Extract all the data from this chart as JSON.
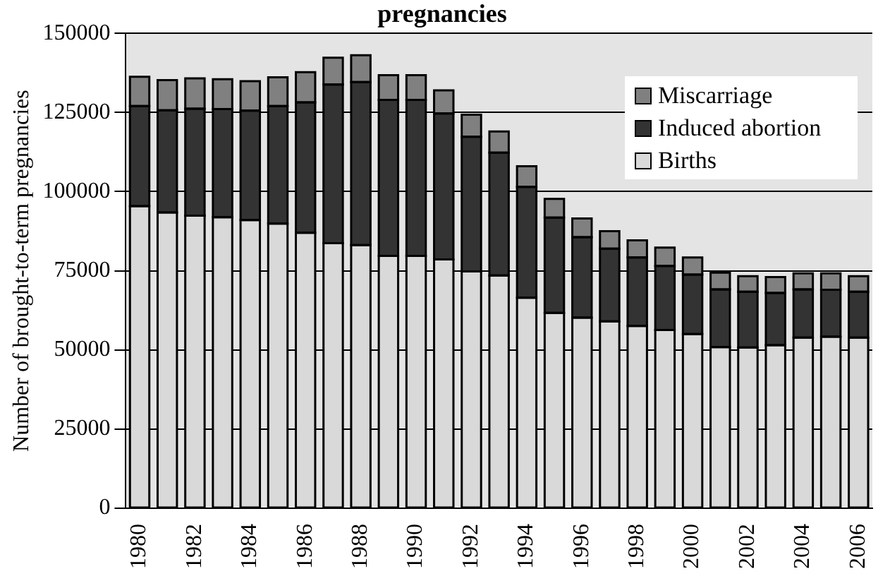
{
  "chart_data": {
    "type": "bar",
    "title": "pregnancies",
    "ylabel": "Number of brought-to-term pregnancies",
    "stacked": true,
    "grid": "y",
    "legend": "top right",
    "categories": [
      "1980",
      null,
      "1982",
      null,
      "1984",
      null,
      "1986",
      null,
      "1988",
      null,
      "1990",
      null,
      "1992",
      null,
      "1994",
      null,
      "1996",
      null,
      "1998",
      null,
      "2000",
      null,
      "2002",
      null,
      "2004",
      null,
      "2006"
    ],
    "ylim": [
      0,
      150000
    ],
    "yticks": [
      0,
      25000,
      50000,
      75000,
      100000,
      125000,
      150000
    ],
    "series": [
      {
        "name": "Births",
        "color": "#d9d9d9",
        "values": [
          95400,
          93400,
          92400,
          91900,
          91000,
          89900,
          87000,
          83700,
          83100,
          79700,
          79700,
          78600,
          74800,
          73500,
          66500,
          61700,
          60200,
          59000,
          57600,
          56300,
          55000,
          50900,
          50800,
          51500,
          53900,
          54200,
          53900
        ]
      },
      {
        "name": "Induced abortion",
        "color": "#333333",
        "values": [
          31600,
          32300,
          33800,
          34200,
          34600,
          37100,
          41200,
          50100,
          51500,
          49300,
          49300,
          46100,
          42500,
          38800,
          35000,
          30100,
          25400,
          23000,
          21600,
          20200,
          18800,
          18200,
          17600,
          16500,
          15200,
          14800,
          14500
        ]
      },
      {
        "name": "Miscarriage",
        "color": "#808080",
        "values": [
          9300,
          9500,
          9600,
          9400,
          9300,
          9100,
          9500,
          8500,
          8500,
          7800,
          7800,
          7300,
          7000,
          6700,
          6500,
          5900,
          5900,
          5500,
          5400,
          5800,
          5400,
          5300,
          4900,
          5000,
          5100,
          5200,
          4900
        ]
      }
    ]
  }
}
